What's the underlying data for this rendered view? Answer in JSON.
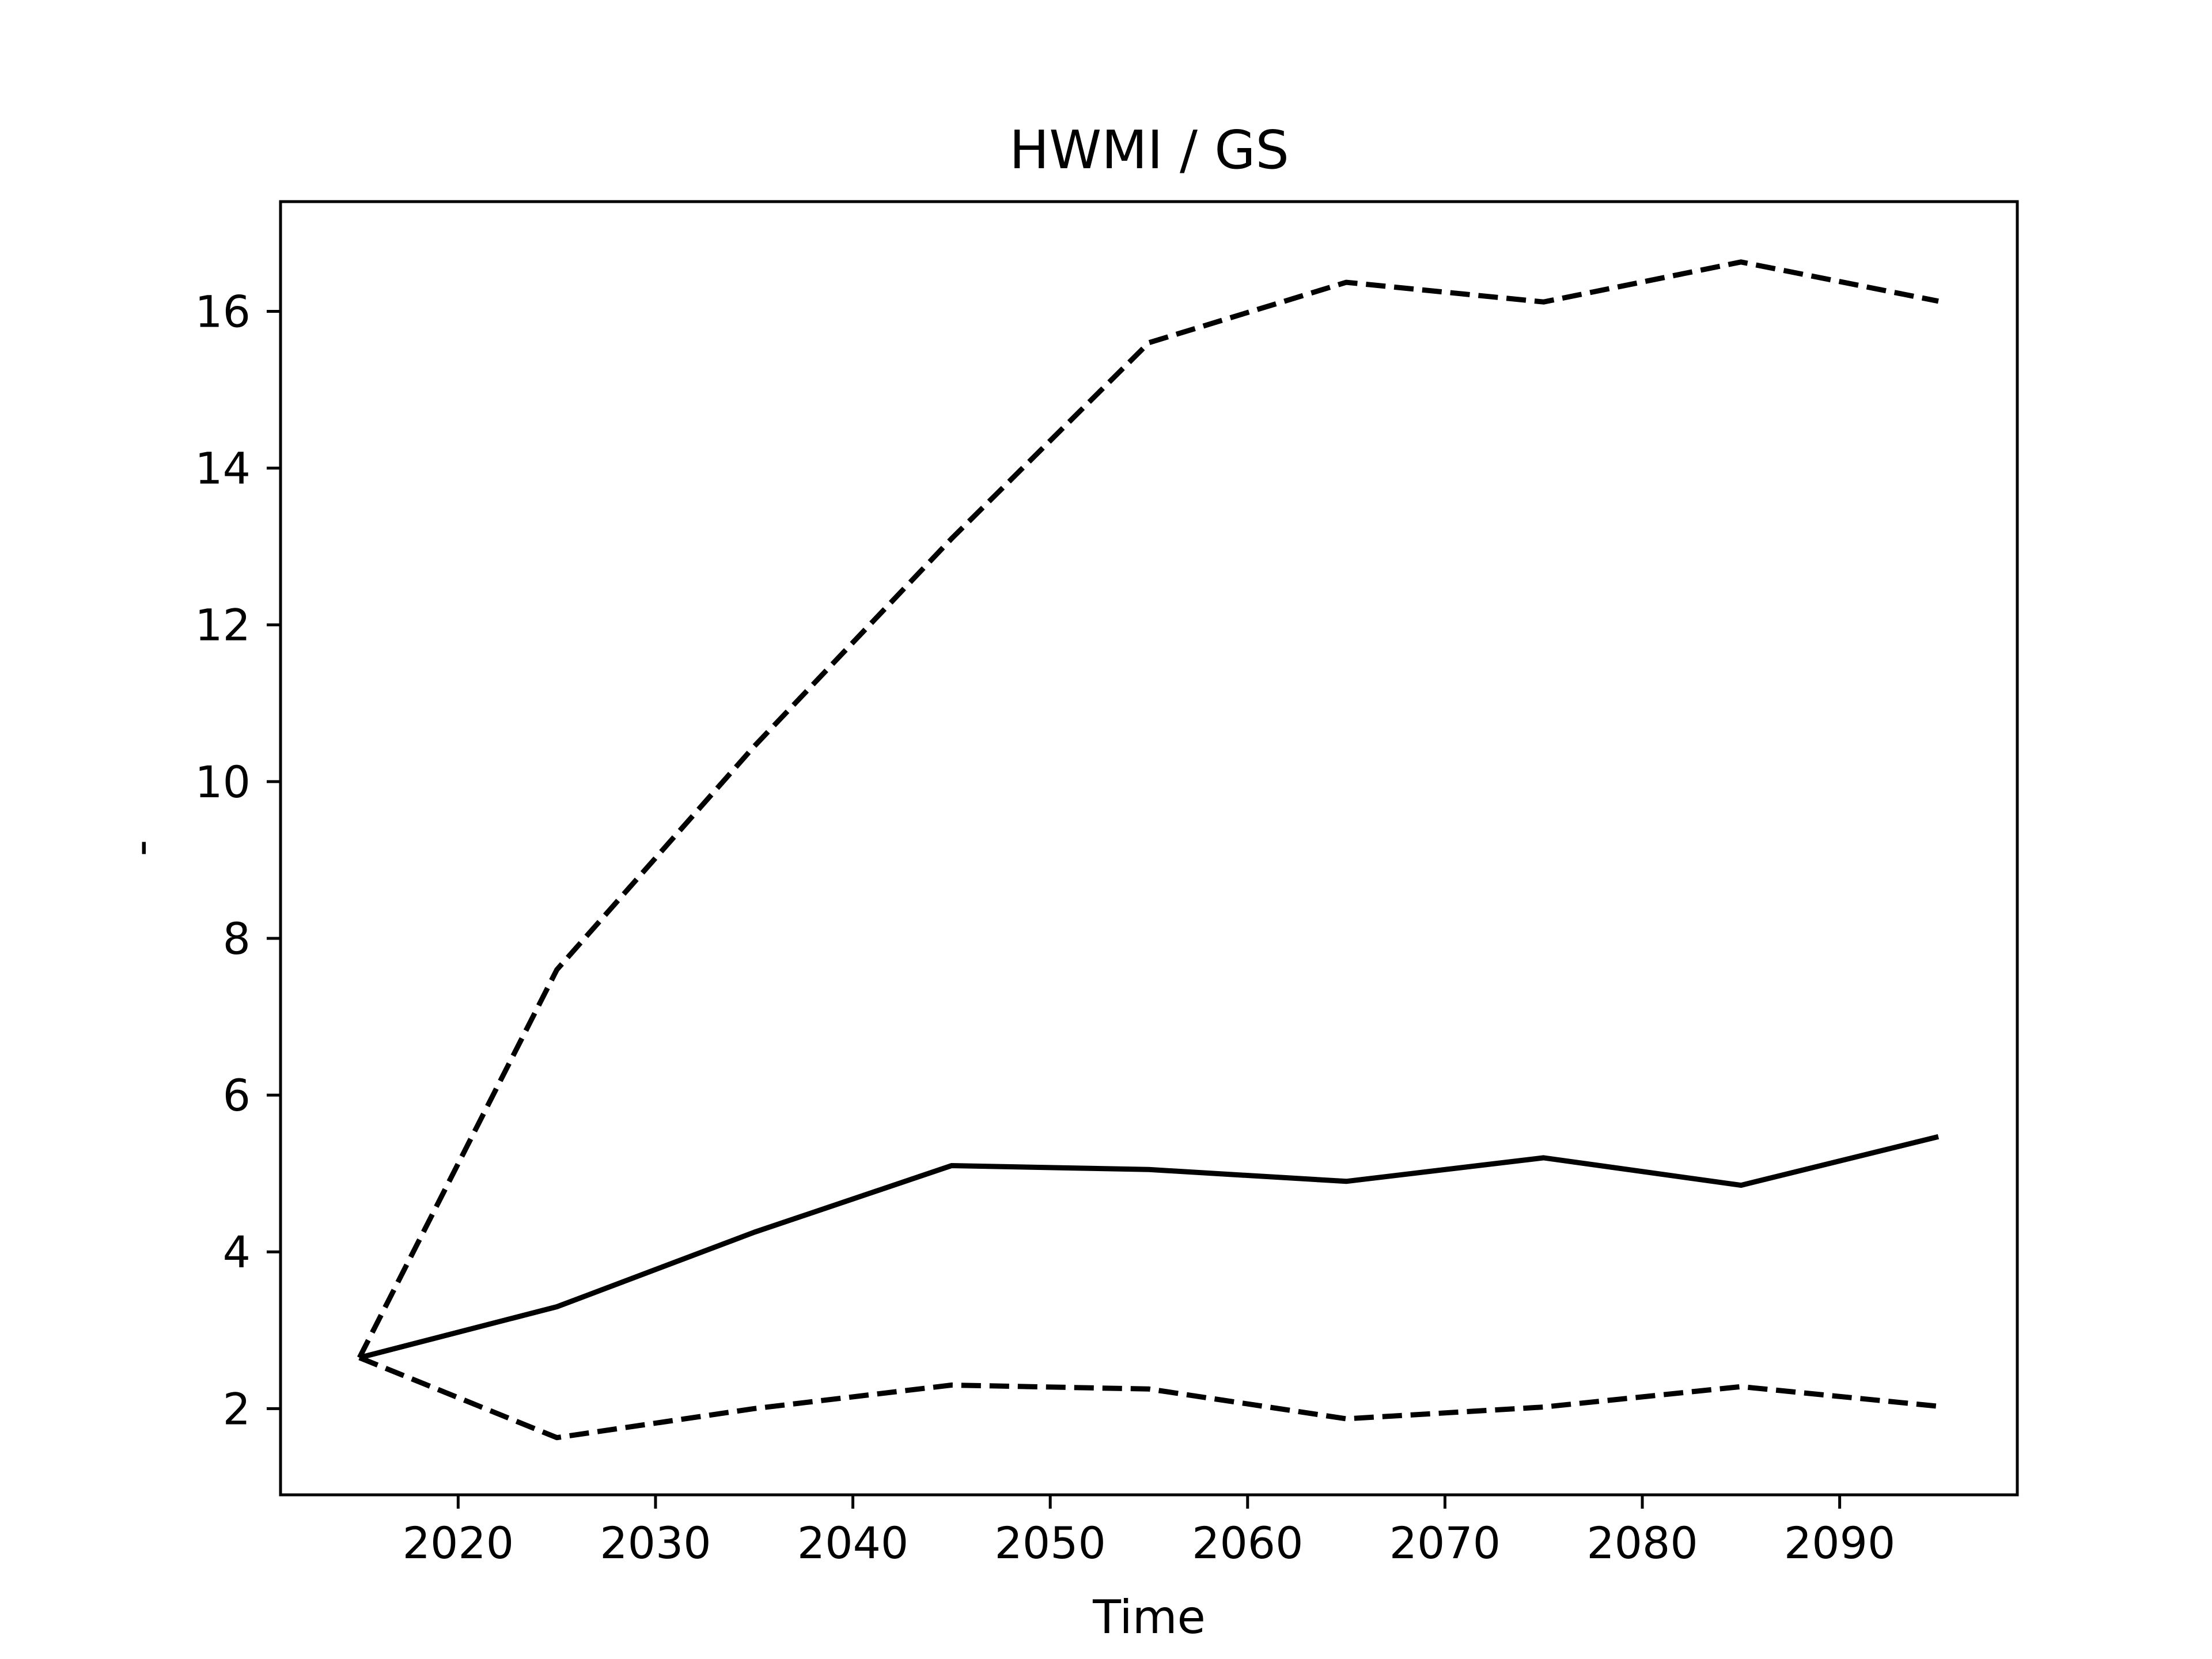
{
  "chart_data": {
    "type": "line",
    "title": "HWMI / GS",
    "xlabel": "Time",
    "ylabel": "-",
    "xlim": [
      2011,
      2099
    ],
    "ylim": [
      0.9,
      17.4
    ],
    "x_ticks": [
      2020,
      2030,
      2040,
      2050,
      2060,
      2070,
      2080,
      2090
    ],
    "y_ticks": [
      2,
      4,
      6,
      8,
      10,
      12,
      14,
      16
    ],
    "grid": false,
    "legend": "none",
    "x": [
      2015,
      2025,
      2035,
      2045,
      2055,
      2065,
      2075,
      2085,
      2095
    ],
    "series": [
      {
        "style": "solid",
        "color": "#000000",
        "values": [
          2.65,
          3.3,
          4.25,
          5.1,
          5.05,
          4.9,
          5.2,
          4.85,
          5.47
        ]
      },
      {
        "style": "dashed",
        "color": "#000000",
        "values": [
          2.65,
          7.6,
          10.45,
          13.1,
          15.6,
          16.37,
          16.12,
          16.63,
          16.13
        ]
      },
      {
        "style": "dashed",
        "color": "#000000",
        "values": [
          2.65,
          1.63,
          2.0,
          2.3,
          2.25,
          1.87,
          2.02,
          2.28,
          2.03
        ]
      }
    ]
  }
}
